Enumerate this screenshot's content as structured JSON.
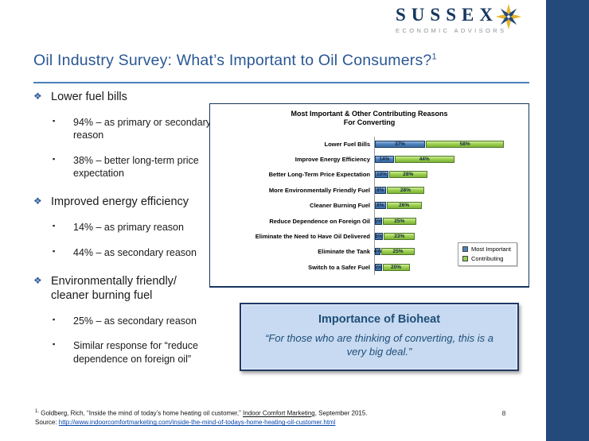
{
  "logo": {
    "name": "SUSSEX",
    "tagline": "ECONOMIC ADVISORS"
  },
  "title": {
    "text": "Oil Industry Survey: What’s Important to Oil Consumers?",
    "superscript": "1"
  },
  "bullets": [
    {
      "label": "Lower fuel bills",
      "subs": [
        "94% – as primary or secondary reason",
        "38% – better long-term price expectation"
      ]
    },
    {
      "label": "Improved energy efficiency",
      "subs": [
        "14% – as primary reason",
        "44% – as secondary reason"
      ]
    },
    {
      "label": "Environmentally friendly/ cleaner burning fuel",
      "subs": [
        "25% – as secondary reason",
        "Similar response for “reduce dependence on foreign oil”"
      ]
    }
  ],
  "chart_data": {
    "type": "bar",
    "orientation": "horizontal",
    "stacked": true,
    "title": "Most Important & Other Contributing Reasons For Converting",
    "title_lines": [
      "Most Important & Other Contributing Reasons",
      "For Converting"
    ],
    "categories": [
      "Lower Fuel Bills",
      "Improve Energy Efficiency",
      "Better Long-Term Price Expectation",
      "More Environmentally Friendly Fuel",
      "Cleaner Burning Fuel",
      "Reduce Dependence on Foreign Oil",
      "Eliminate the Need to Have Oil Delivered",
      "Eliminate the Tank",
      "Switch to a Safer Fuel"
    ],
    "series": [
      {
        "name": "Most Important",
        "color": "#4F81BD",
        "values": [
          37,
          14,
          10,
          8,
          8,
          5,
          6,
          4,
          5
        ]
      },
      {
        "name": "Contributing",
        "color": "#92D050",
        "values": [
          58,
          44,
          28,
          28,
          26,
          25,
          23,
          25,
          20
        ]
      }
    ],
    "value_suffix": "%",
    "xlabel": "",
    "ylabel": "",
    "xlim": [
      0,
      100
    ],
    "grid": false,
    "legend_position": "bottom-right"
  },
  "callout": {
    "title": "Importance of Bioheat",
    "quote": "“For those who are thinking of converting, this is a very big deal.”"
  },
  "footnote": {
    "marker": "1.",
    "line1_pre": "Goldberg, Rich, “Inside the mind of today’s home heating oil customer,” ",
    "line1_underlined": "Indoor Comfort Marketing",
    "line1_post": ", September 2015.",
    "source_label": "Source: ",
    "source_url": "http://www.indoorcomfortmarketing.com/inside-the-mind-of-todays-home-heating-oil-customer.html"
  },
  "page_number": "8"
}
